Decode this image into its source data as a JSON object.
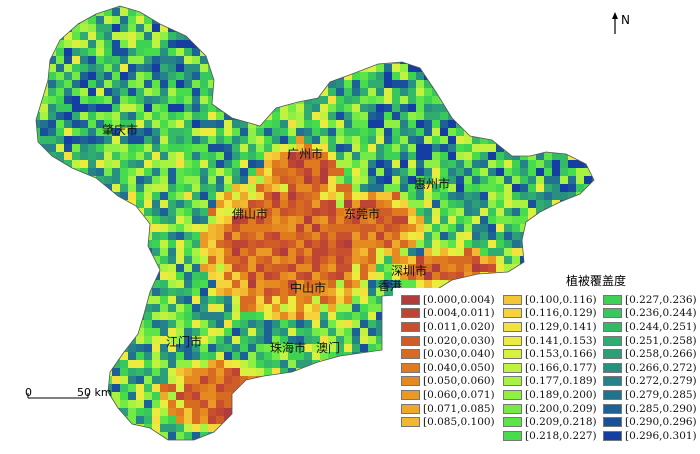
{
  "map": {
    "north_label": "N",
    "legend_title": "植被覆盖度",
    "scale": {
      "zero": "0",
      "distance": "50 km"
    },
    "cities": [
      {
        "id": "zhaoqing",
        "label": "肇庆市"
      },
      {
        "id": "guangzhou",
        "label": "广州市"
      },
      {
        "id": "huizhou",
        "label": "惠州市"
      },
      {
        "id": "foshan",
        "label": "佛山市"
      },
      {
        "id": "dongguan",
        "label": "东莞市"
      },
      {
        "id": "shenzhen",
        "label": "深圳市"
      },
      {
        "id": "hongkong",
        "label": "香港"
      },
      {
        "id": "zhongshan",
        "label": "中山市"
      },
      {
        "id": "jiangmen",
        "label": "江门市"
      },
      {
        "id": "zhuhai",
        "label": "珠海市"
      },
      {
        "id": "macau",
        "label": "澳门"
      }
    ],
    "legend": [
      {
        "label": "[0.000,0.004)",
        "color": "#b23b3b"
      },
      {
        "label": "[0.004,0.011)",
        "color": "#be4434"
      },
      {
        "label": "[0.011,0.020)",
        "color": "#c8502e"
      },
      {
        "label": "[0.020,0.030)",
        "color": "#d05d27"
      },
      {
        "label": "[0.030,0.040)",
        "color": "#d86b22"
      },
      {
        "label": "[0.040,0.050)",
        "color": "#df7a1f"
      },
      {
        "label": "[0.050,0.060)",
        "color": "#e58a20"
      },
      {
        "label": "[0.060,0.071)",
        "color": "#ea9a24"
      },
      {
        "label": "[0.071,0.085)",
        "color": "#eea92a"
      },
      {
        "label": "[0.085,0.100)",
        "color": "#f1b830"
      },
      {
        "label": "[0.100,0.116)",
        "color": "#f4c636"
      },
      {
        "label": "[0.116,0.129)",
        "color": "#f6d33c"
      },
      {
        "label": "[0.129,0.141)",
        "color": "#f4e03e"
      },
      {
        "label": "[0.141,0.153)",
        "color": "#ecec3e"
      },
      {
        "label": "[0.153,0.166)",
        "color": "#d8f03e"
      },
      {
        "label": "[0.166,0.177)",
        "color": "#c2f240"
      },
      {
        "label": "[0.177,0.189)",
        "color": "#a8f242"
      },
      {
        "label": "[0.189,0.200)",
        "color": "#8eef44"
      },
      {
        "label": "[0.200,0.209)",
        "color": "#74ea46"
      },
      {
        "label": "[0.209,0.218)",
        "color": "#5ce448"
      },
      {
        "label": "[0.218,0.227)",
        "color": "#46dc4c"
      },
      {
        "label": "[0.227,0.236)",
        "color": "#3ed255"
      },
      {
        "label": "[0.236,0.244)",
        "color": "#38c65e"
      },
      {
        "label": "[0.244,0.251)",
        "color": "#34b967"
      },
      {
        "label": "[0.251,0.258)",
        "color": "#30ac70"
      },
      {
        "label": "[0.258,0.266)",
        "color": "#2c9e78"
      },
      {
        "label": "[0.266,0.272)",
        "color": "#289080"
      },
      {
        "label": "[0.272,0.279)",
        "color": "#248288"
      },
      {
        "label": "[0.279,0.285)",
        "color": "#20728f"
      },
      {
        "label": "[0.285,0.290)",
        "color": "#1c6296"
      },
      {
        "label": "[0.290,0.296)",
        "color": "#18509c"
      },
      {
        "label": "[0.296,0.301)",
        "color": "#143ea2"
      }
    ]
  }
}
